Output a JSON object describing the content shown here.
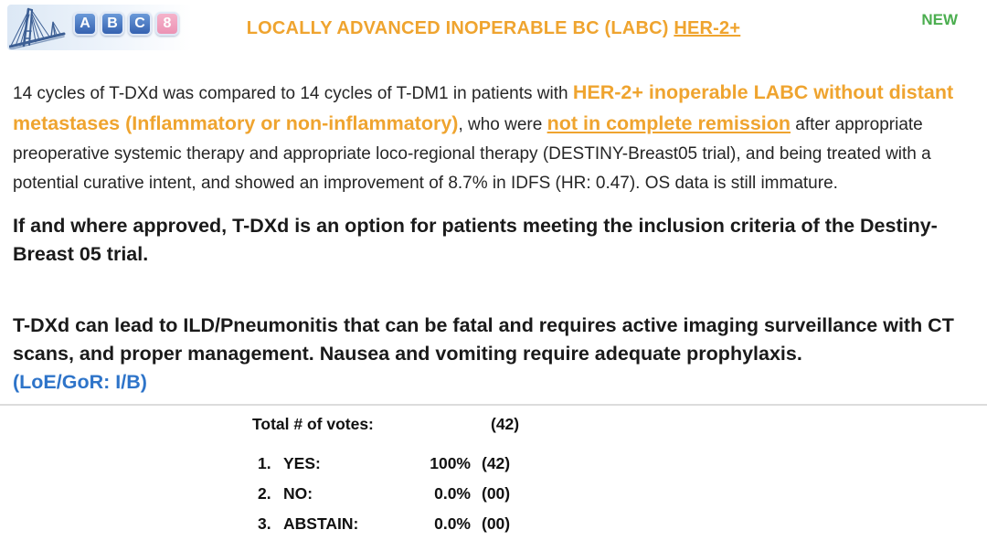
{
  "colors": {
    "orange": "#EFA42F",
    "green": "#4BAE4F",
    "blue": "#2E74C9",
    "pink": "#ED8FA8",
    "text": "#262626"
  },
  "header": {
    "logo": {
      "icon": "bridge-icon",
      "letters": [
        "A",
        "B",
        "C"
      ],
      "number": "8"
    },
    "title_main": "LOCALLY ADVANCED INOPERABLE BC (LABC) ",
    "title_underlined": "HER-2+",
    "new_badge": "NEW"
  },
  "summary": {
    "seg1": "14 cycles of T-DXd was compared to 14 cycles of T-DM1 in patients with ",
    "seg2_orange": "HER-2+ inoperable LABC without distant metastases (Inflammatory or non-inflammatory)",
    "seg3": ", who were ",
    "seg4_orange_underlined": "not in complete remission",
    "seg5": " after appropriate preoperative systemic therapy and appropriate loco-regional therapy (DESTINY-Breast05 trial), and being treated with a potential curative intent, and showed an improvement of 8.7% in IDFS (HR: 0.47). OS data is still immature."
  },
  "statement1": "If and where approved, T-DXd is an option for patients meeting the inclusion criteria of the Destiny-Breast 05 trial.",
  "statement2": "T-DXd can lead to ILD/Pneumonitis that can be fatal and requires active imaging surveillance with CT scans, and proper management. Nausea and vomiting require adequate prophylaxis.",
  "loe_gor": "(LoE/GoR: I/B)",
  "voting": {
    "total_label": "Total # of votes:",
    "total_value": "(42)",
    "rows": [
      {
        "num": "1.",
        "label": "YES:",
        "pct": "100%",
        "count": "(42)",
        "bar_pct": 100
      },
      {
        "num": "2.",
        "label": "NO:",
        "pct": "0.0%",
        "count": "(00)",
        "bar_pct": 0
      },
      {
        "num": "3.",
        "label": "ABSTAIN:",
        "pct": "0.0%",
        "count": "(00)",
        "bar_pct": 0
      }
    ]
  }
}
